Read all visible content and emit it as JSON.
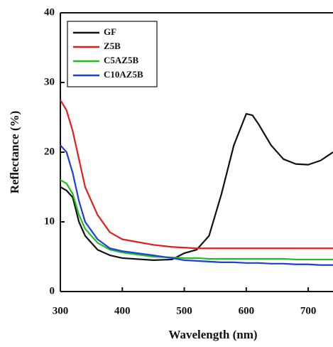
{
  "chart_data": {
    "type": "line",
    "xlabel": "Wavelength (nm)",
    "ylabel": "Reflectance (%)",
    "x": [
      300,
      310,
      320,
      330,
      340,
      360,
      380,
      400,
      450,
      480,
      500,
      520,
      540,
      560,
      580,
      600,
      610,
      620,
      640,
      660,
      680,
      700,
      720,
      740
    ],
    "series": [
      {
        "name": "GF",
        "color": "#111111",
        "values": [
          15,
          14.5,
          13.5,
          10,
          8,
          6,
          5.2,
          4.8,
          4.5,
          4.6,
          5.5,
          6.0,
          8,
          14,
          21,
          25.5,
          25.3,
          24,
          21,
          19,
          18.3,
          18.2,
          18.8,
          20
        ]
      },
      {
        "name": "Z5B",
        "color": "#e02020",
        "values": [
          27.5,
          26,
          23,
          19,
          15,
          11,
          8.5,
          7.5,
          6.7,
          6.4,
          6.3,
          6.2,
          6.2,
          6.2,
          6.2,
          6.2,
          6.2,
          6.2,
          6.2,
          6.2,
          6.2,
          6.2,
          6.2,
          6.2
        ]
      },
      {
        "name": "C5AZ5B",
        "color": "#1fbf1f",
        "values": [
          16,
          15.5,
          14,
          11,
          9,
          7,
          6,
          5.6,
          5.0,
          4.9,
          4.8,
          4.8,
          4.7,
          4.7,
          4.7,
          4.7,
          4.7,
          4.7,
          4.7,
          4.7,
          4.6,
          4.6,
          4.6,
          4.6
        ]
      },
      {
        "name": "C10AZ5B",
        "color": "#1f3fd8",
        "values": [
          21,
          20,
          17,
          13,
          10,
          7.5,
          6.2,
          5.8,
          5.2,
          4.8,
          4.5,
          4.4,
          4.3,
          4.2,
          4.2,
          4.1,
          4.1,
          4.1,
          4.0,
          4.0,
          3.9,
          3.9,
          3.8,
          3.8
        ]
      }
    ],
    "xlim": [
      300,
      740
    ],
    "xticks": [
      300,
      400,
      500,
      600,
      700
    ],
    "ylim": [
      0,
      40
    ],
    "yticks": [
      0,
      10,
      20,
      30,
      40
    ],
    "legend": "upper-left"
  }
}
